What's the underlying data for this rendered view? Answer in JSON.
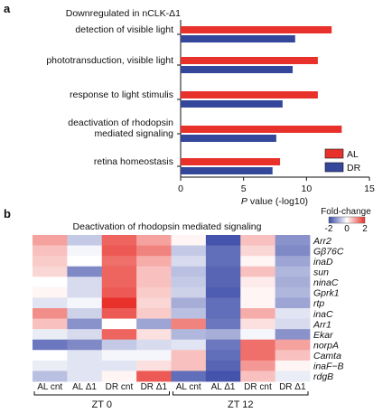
{
  "panel_a": {
    "letter": "a"
  },
  "panel_b": {
    "letter": "b"
  },
  "chart_data": [
    {
      "type": "bar",
      "orientation": "horizontal",
      "title": "Downregulated in nCLK-Δ1",
      "categories": [
        "detection of visible light",
        "phototransduction, visible light",
        "response to light stimulis",
        "deactivation of rhodopsin mediated signaling",
        "retina homeostasis"
      ],
      "category_lines": [
        [
          "detection of visible light"
        ],
        [
          "phototransduction, visible light"
        ],
        [
          "response to light stimulis"
        ],
        [
          "deactivation of rhodopsin",
          "mediated signaling"
        ],
        [
          "retina homeostasis"
        ]
      ],
      "series": [
        {
          "name": "AL",
          "color": "#e8312a",
          "values": [
            12.0,
            10.9,
            10.9,
            12.8,
            7.9
          ]
        },
        {
          "name": "DR",
          "color": "#34479b",
          "values": [
            9.1,
            8.9,
            8.1,
            7.6,
            7.3
          ]
        }
      ],
      "xlabel_italic": "P",
      "xlabel_rest": " value (-log10)",
      "xlim": [
        0,
        15
      ],
      "xticks": [
        0,
        5,
        10,
        15
      ],
      "legend_position": "bottom-right"
    },
    {
      "type": "heatmap",
      "title": "Deactivation of rhodopsin mediated signaling",
      "rows": [
        "Arr2",
        "Gβ76C",
        "inaD",
        "sun",
        "ninaC",
        "Gprk1",
        "rtp",
        "inaC",
        "Arr1",
        "Ekar",
        "norpA",
        "Camta",
        "inaF−B",
        "rdgB"
      ],
      "columns": [
        "AL cnt",
        "AL Δ1",
        "DR cnt",
        "DR Δ1",
        "AL cnt",
        "AL Δ1",
        "DR cnt",
        "DR Δ1"
      ],
      "column_groups": [
        {
          "label": "ZT 0",
          "span": [
            0,
            3
          ]
        },
        {
          "label": "ZT 12",
          "span": [
            4,
            7
          ]
        }
      ],
      "values": [
        [
          0.9,
          -0.6,
          1.5,
          0.9,
          0.1,
          -1.9,
          0.6,
          -1.2
        ],
        [
          0.6,
          -0.1,
          1.6,
          1.2,
          -0.6,
          -1.6,
          0.4,
          -1.3
        ],
        [
          0.5,
          0.0,
          1.4,
          0.8,
          -0.4,
          -1.6,
          0.1,
          -1.0
        ],
        [
          0.4,
          -1.3,
          1.5,
          0.6,
          -0.7,
          -1.7,
          0.6,
          -0.8
        ],
        [
          0.0,
          -0.4,
          1.5,
          0.6,
          -0.6,
          -1.7,
          0.2,
          -0.9
        ],
        [
          0.1,
          -0.4,
          1.6,
          0.5,
          -0.5,
          -1.8,
          0.1,
          -0.8
        ],
        [
          -0.3,
          -0.1,
          2.0,
          0.4,
          -0.9,
          -1.6,
          0.1,
          -1.0
        ],
        [
          1.1,
          -0.5,
          1.6,
          0.5,
          -0.7,
          -1.6,
          0.8,
          -0.3
        ],
        [
          0.6,
          -1.2,
          0.0,
          -1.0,
          1.2,
          -1.5,
          0.3,
          -0.4
        ],
        [
          -0.2,
          -0.4,
          1.5,
          0.3,
          -0.8,
          -0.9,
          -0.1,
          -1.2
        ],
        [
          -1.5,
          -1.3,
          -0.6,
          -0.4,
          -0.3,
          -1.5,
          1.4,
          0.9
        ],
        [
          0.0,
          -0.3,
          -0.1,
          -0.1,
          0.6,
          -1.6,
          1.4,
          0.6
        ],
        [
          -0.2,
          -0.3,
          -0.3,
          0.3,
          0.6,
          -1.7,
          1.0,
          0.1
        ],
        [
          -0.7,
          -0.3,
          0.1,
          1.6,
          -1.6,
          -1.9,
          0.6,
          -0.2
        ]
      ],
      "colorbar": {
        "label": "Fold-change",
        "ticks": [
          -2,
          0,
          2
        ],
        "range": [
          -2,
          2
        ],
        "low_color": "#3a4aa8",
        "mid_color": "#ffffff",
        "high_color": "#e8312a"
      }
    }
  ]
}
